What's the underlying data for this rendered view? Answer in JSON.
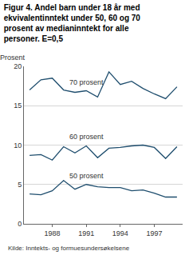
{
  "chart_data": {
    "type": "line",
    "title": "Figur 4. Andel barn under 18 år med ekvivalentinntekt under 50, 60 og 70 prosent av medianinntekt for alle personer. E=0,5",
    "y_label": "Prosent",
    "source": "Kilde: Inntekts- og formuesundersøkelsene",
    "x": [
      1986,
      1987,
      1988,
      1989,
      1990,
      1991,
      1992,
      1993,
      1994,
      1995,
      1996,
      1997,
      1998,
      1999
    ],
    "series": [
      {
        "name": "70 prosent",
        "color": "#1f4e6e",
        "values": [
          17.0,
          18.3,
          18.5,
          17.0,
          16.7,
          16.9,
          16.1,
          19.3,
          17.7,
          18.1,
          17.2,
          16.5,
          15.9,
          17.4
        ]
      },
      {
        "name": "60 prosent",
        "color": "#1f4e6e",
        "values": [
          8.7,
          8.8,
          8.1,
          9.8,
          9.0,
          9.9,
          8.4,
          9.6,
          9.7,
          9.9,
          10.0,
          9.7,
          8.3,
          9.8
        ]
      },
      {
        "name": "50 prosent",
        "color": "#1f4e6e",
        "values": [
          3.8,
          3.7,
          4.2,
          5.5,
          4.4,
          5.0,
          4.7,
          4.6,
          4.6,
          4.2,
          4.3,
          3.9,
          3.4,
          3.4
        ]
      }
    ],
    "xlim": [
      1985.5,
      1999.5
    ],
    "xticks": [
      1988,
      1991,
      1994,
      1997
    ],
    "ylim": [
      0,
      20
    ],
    "yticks": [
      0,
      5,
      10,
      15,
      20
    ],
    "grid": true
  }
}
